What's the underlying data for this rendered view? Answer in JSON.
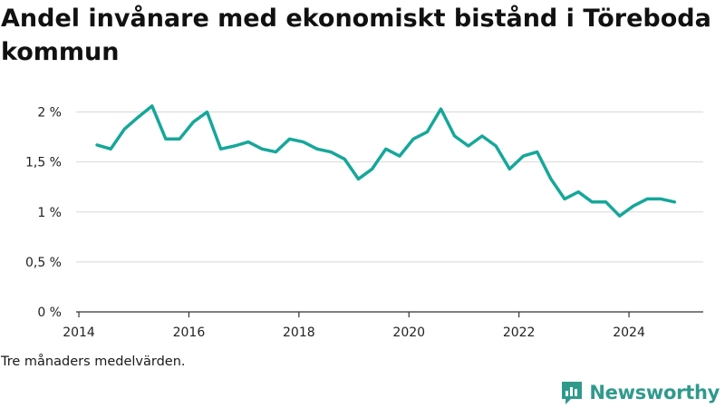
{
  "header": {
    "title": "Andel invånare med ekonomiskt bistånd i Töreboda kommun"
  },
  "footer": {
    "note": "Tre månaders medelvärden.",
    "brand_name": "Newsworthy",
    "brand_icon": "newsworthy-logo-icon",
    "brand_color": "#2f9a8c"
  },
  "chart_data": {
    "type": "line",
    "title": "Andel invånare med ekonomiskt bistånd i Töreboda kommun",
    "xlabel": "",
    "ylabel": "",
    "ylim": [
      0,
      2.25
    ],
    "xlim": [
      2013.95,
      2025.35
    ],
    "yticks": [
      0,
      0.5,
      1,
      1.5,
      2
    ],
    "ytick_labels": [
      "0 %",
      "0,5 %",
      "1 %",
      "1,5 %",
      "2 %"
    ],
    "xticks": [
      2014,
      2016,
      2018,
      2020,
      2022,
      2024
    ],
    "xtick_labels": [
      "2014",
      "2016",
      "2018",
      "2020",
      "2022",
      "2024"
    ],
    "grid": "horizontal",
    "line_color": "#16a79a",
    "series": [
      {
        "x": [
          2014.33,
          2014.58,
          2014.83,
          2015.08,
          2015.33,
          2015.58,
          2015.83,
          2016.08,
          2016.33,
          2016.58,
          2016.83,
          2017.08,
          2017.33,
          2017.58,
          2017.83,
          2018.08,
          2018.33,
          2018.58,
          2018.83,
          2019.08,
          2019.33,
          2019.58,
          2019.83,
          2020.08,
          2020.33,
          2020.58,
          2020.83,
          2021.08,
          2021.33,
          2021.58,
          2021.83,
          2022.08,
          2022.33,
          2022.58,
          2022.83,
          2023.08,
          2023.33,
          2023.58,
          2023.83,
          2024.08,
          2024.33,
          2024.58,
          2024.83
        ],
        "values": [
          1.67,
          1.63,
          1.83,
          1.95,
          2.06,
          1.73,
          1.73,
          1.9,
          2.0,
          1.63,
          1.66,
          1.7,
          1.63,
          1.6,
          1.73,
          1.7,
          1.63,
          1.6,
          1.53,
          1.33,
          1.43,
          1.63,
          1.56,
          1.73,
          1.8,
          2.03,
          1.76,
          1.66,
          1.76,
          1.66,
          1.43,
          1.56,
          1.6,
          1.33,
          1.13,
          1.2,
          1.1,
          1.1,
          0.96,
          1.06,
          1.13,
          1.13,
          1.1
        ]
      }
    ]
  }
}
